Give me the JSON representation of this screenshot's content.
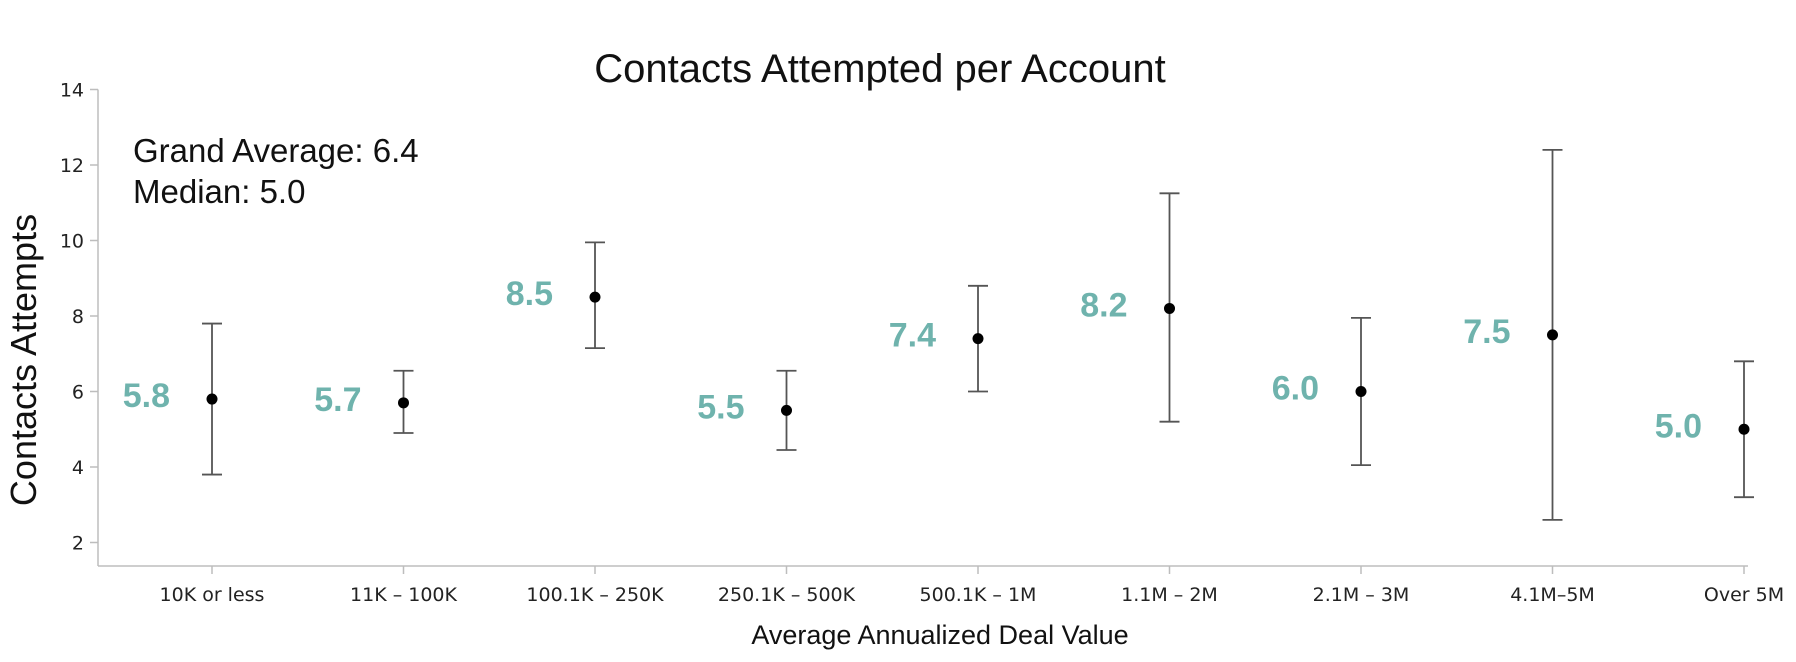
{
  "chart_data": {
    "type": "scatter",
    "title": "Contacts Attempted per Account",
    "xlabel": "Average Annualized Deal Value",
    "ylabel": "Contacts Attempts",
    "ylim": [
      2,
      14
    ],
    "yticks": [
      2,
      4,
      6,
      8,
      10,
      12,
      14
    ],
    "grid": false,
    "annotations": [
      "Grand Average: 6.4",
      "Median: 5.0"
    ],
    "label_color": "#6fb3ad",
    "categories": [
      "10K or less",
      "11K – 100K",
      "100.1K – 250K",
      "250.1K – 500K",
      "500.1K – 1M",
      "1.1M – 2M",
      "2.1M – 3M",
      "4.1M–5M",
      "Over 5M"
    ],
    "series": [
      {
        "values": [
          5.8,
          5.7,
          8.5,
          5.5,
          7.4,
          8.2,
          6.0,
          7.5,
          5.0
        ],
        "labels": [
          "5.8",
          "5.7",
          "8.5",
          "5.5",
          "7.4",
          "8.2",
          "6.0",
          "7.5",
          "5.0"
        ],
        "lower": [
          3.8,
          4.9,
          7.15,
          4.45,
          6.0,
          5.2,
          4.05,
          2.6,
          3.2
        ],
        "upper": [
          7.8,
          6.55,
          9.95,
          6.55,
          8.8,
          11.25,
          7.95,
          12.4,
          6.8
        ]
      }
    ]
  }
}
